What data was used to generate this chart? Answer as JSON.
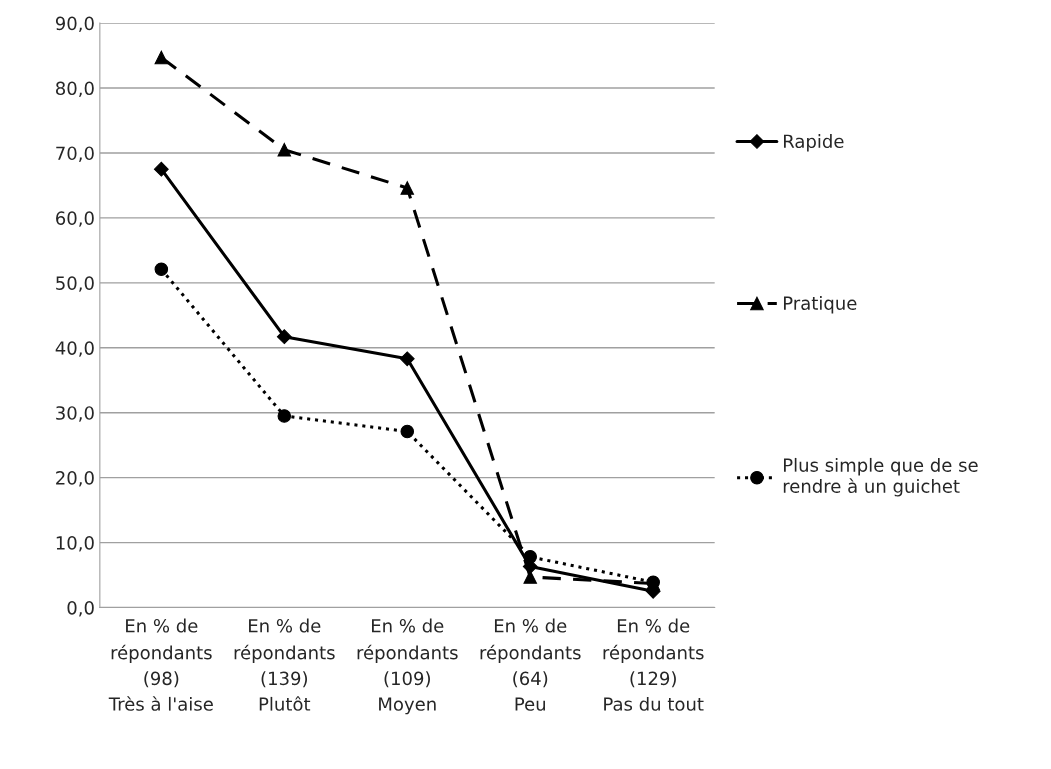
{
  "chart_data": {
    "type": "line",
    "categories": [
      "En % de\nrépondants\n(98)\nTrès à l'aise",
      "En % de\nrépondants\n(139)\nPlutôt",
      "En % de\nrépondants\n(109)\nMoyen",
      "En % de\nrépondants\n(64)\nPeu",
      "En % de\nrépondants\n(129)\nPas du tout"
    ],
    "series": [
      {
        "name": "Rapide",
        "color": "#000000",
        "marker": "diamond",
        "line_style": "solid",
        "values": [
          67.5,
          41.7,
          38.3,
          6.3,
          2.5
        ]
      },
      {
        "name": "Pratique",
        "color": "#000000",
        "marker": "triangle",
        "line_style": "dashed",
        "values": [
          84.7,
          70.5,
          64.6,
          4.7,
          3.7
        ]
      },
      {
        "name": "Plus simple que de se\nrendre à un guichet",
        "color": "#000000",
        "marker": "circle",
        "line_style": "dotted",
        "values": [
          52.1,
          29.5,
          27.1,
          7.8,
          3.9
        ]
      }
    ],
    "ylim": [
      0,
      90
    ],
    "yticks": [
      {
        "value": 0,
        "label": "0,0"
      },
      {
        "value": 10,
        "label": "10,0"
      },
      {
        "value": 20,
        "label": "20,0"
      },
      {
        "value": 30,
        "label": "30,0"
      },
      {
        "value": 40,
        "label": "40,0"
      },
      {
        "value": 50,
        "label": "50,0"
      },
      {
        "value": 60,
        "label": "60,0"
      },
      {
        "value": 70,
        "label": "70,0"
      },
      {
        "value": 80,
        "label": "80,0"
      },
      {
        "value": 90,
        "label": "90,0"
      }
    ],
    "grid": "y",
    "legend": "right"
  }
}
